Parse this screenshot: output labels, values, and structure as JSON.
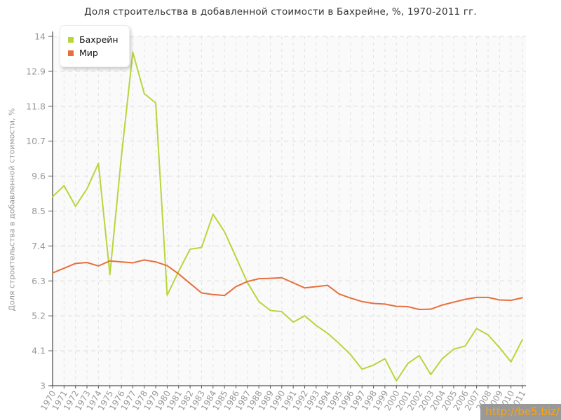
{
  "title": "Доля строительства в добавленной стоимости в Бахрейне, %, 1970-2011 гг.",
  "watermark": {
    "link_text": "http://be5.biz/",
    "bg_color": "#999999",
    "text_color": "#ffa30a"
  },
  "legend": {
    "position": "top-left",
    "items": [
      "Бахрейн",
      "Мир"
    ]
  },
  "axis": {
    "ylabel": "Доля строительства в добавленной стоимости, %",
    "ytick_labels": [
      "3",
      "4.1",
      "5.2",
      "6.3",
      "7.4",
      "8.5",
      "9.6",
      "10.7",
      "11.8",
      "12.9",
      "14"
    ]
  },
  "chart_data": {
    "type": "line",
    "title": "Доля строительства в добавленной стоимости в Бахрейне, %, 1970-2011 гг.",
    "xlabel": "",
    "ylabel": "Доля строительства в добавленной стоимости, %",
    "ylim": [
      3,
      14
    ],
    "yticks": [
      3,
      4.1,
      5.2,
      6.3,
      7.4,
      8.5,
      9.6,
      10.7,
      11.8,
      12.9,
      14
    ],
    "grid": true,
    "legend_position": "top-left",
    "x": [
      1970,
      1971,
      1972,
      1973,
      1974,
      1975,
      1976,
      1977,
      1978,
      1979,
      1980,
      1981,
      1982,
      1983,
      1984,
      1985,
      1986,
      1987,
      1988,
      1989,
      1990,
      1991,
      1992,
      1993,
      1994,
      1995,
      1996,
      1997,
      1998,
      1999,
      2000,
      2001,
      2002,
      2003,
      2004,
      2005,
      2006,
      2007,
      2008,
      2009,
      2010,
      2011
    ],
    "series": [
      {
        "name": "Бахрейн",
        "color": "#b7d63c",
        "values": [
          8.95,
          9.3,
          8.65,
          9.2,
          10.0,
          6.5,
          10.2,
          13.5,
          12.2,
          11.9,
          5.85,
          6.6,
          7.3,
          7.35,
          8.4,
          7.85,
          7.05,
          6.25,
          5.65,
          5.37,
          5.33,
          5.0,
          5.2,
          4.9,
          4.65,
          4.33,
          3.98,
          3.52,
          3.65,
          3.85,
          3.15,
          3.7,
          3.95,
          3.35,
          3.85,
          4.15,
          4.25,
          4.8,
          4.6,
          4.2,
          3.75,
          4.45
        ]
      },
      {
        "name": "Мир",
        "color": "#e76f3c",
        "values": [
          6.55,
          6.7,
          6.85,
          6.88,
          6.77,
          6.93,
          6.9,
          6.87,
          6.96,
          6.9,
          6.78,
          6.52,
          6.22,
          5.92,
          5.87,
          5.84,
          6.12,
          6.28,
          6.37,
          6.38,
          6.4,
          6.24,
          6.08,
          6.12,
          6.16,
          5.89,
          5.76,
          5.65,
          5.59,
          5.57,
          5.5,
          5.49,
          5.4,
          5.41,
          5.54,
          5.63,
          5.72,
          5.78,
          5.78,
          5.7,
          5.69,
          5.77
        ]
      }
    ],
    "plot_colors": {
      "plot_bg": "#fafafa",
      "grid_v": "#e2e2e2",
      "grid_h": "#dcdcdc",
      "axis": "#555555",
      "tick_text": "#999999",
      "title_text": "#333333"
    }
  }
}
